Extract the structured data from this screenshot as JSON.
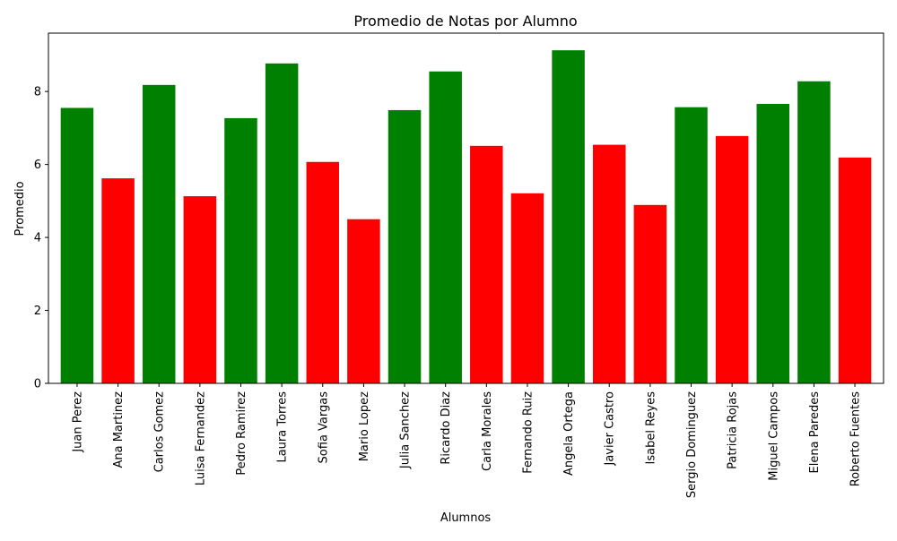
{
  "chart_data": {
    "type": "bar",
    "title": "Promedio de Notas por Alumno",
    "xlabel": "Alumnos",
    "ylabel": "Promedio",
    "ylim": [
      0,
      9.6
    ],
    "yticks": [
      0,
      2,
      4,
      6,
      8
    ],
    "grid": false,
    "categories": [
      "Juan Perez",
      "Ana Martinez",
      "Carlos Gomez",
      "Luisa Fernandez",
      "Pedro Ramirez",
      "Laura Torres",
      "Sofia Vargas",
      "Mario Lopez",
      "Julia Sanchez",
      "Ricardo Diaz",
      "Carla Morales",
      "Fernando Ruiz",
      "Angela Ortega",
      "Javier Castro",
      "Isabel Reyes",
      "Sergio Dominguez",
      "Patricia Rojas",
      "Miguel Campos",
      "Elena Paredes",
      "Roberto Fuentes"
    ],
    "values": [
      7.55,
      5.62,
      8.18,
      5.13,
      7.27,
      8.77,
      6.07,
      4.5,
      7.49,
      8.55,
      6.51,
      5.21,
      9.13,
      6.54,
      4.89,
      7.57,
      6.78,
      7.66,
      8.28,
      6.19
    ],
    "colors": [
      "#008000",
      "#ff0000",
      "#008000",
      "#ff0000",
      "#008000",
      "#008000",
      "#ff0000",
      "#ff0000",
      "#008000",
      "#008000",
      "#ff0000",
      "#ff0000",
      "#008000",
      "#ff0000",
      "#ff0000",
      "#008000",
      "#ff0000",
      "#008000",
      "#008000",
      "#ff0000"
    ]
  }
}
